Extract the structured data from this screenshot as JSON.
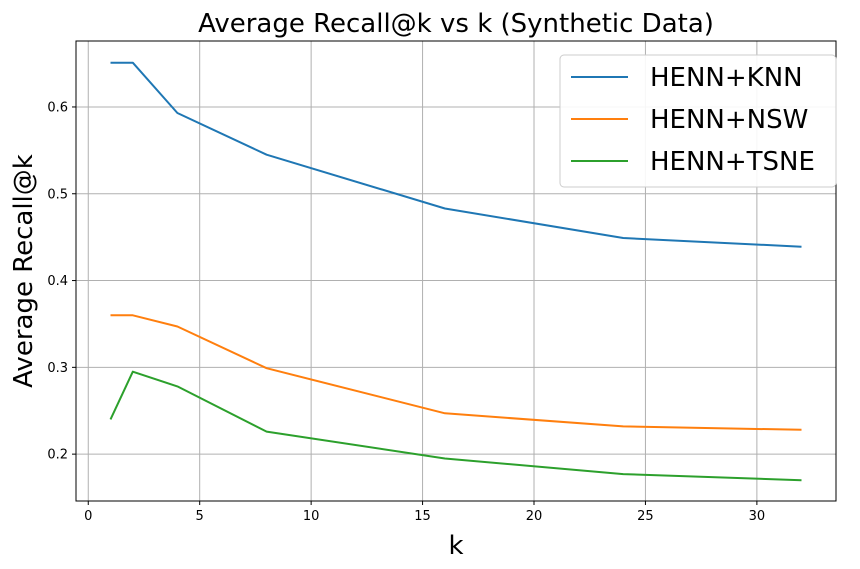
{
  "chart_data": {
    "type": "line",
    "title": "Average Recall@k vs k (Synthetic Data)",
    "xlabel": "k",
    "ylabel": "Average Recall@k",
    "xlim": [
      -0.55,
      33.55
    ],
    "ylim": [
      0.146,
      0.676
    ],
    "xticks": [
      0,
      5,
      10,
      15,
      20,
      25,
      30
    ],
    "yticks": [
      0.2,
      0.3,
      0.4,
      0.5,
      0.6
    ],
    "xtick_labels": [
      "0",
      "5",
      "10",
      "15",
      "20",
      "25",
      "30"
    ],
    "ytick_labels": [
      "0.2",
      "0.3",
      "0.4",
      "0.5",
      "0.6"
    ],
    "grid": true,
    "legend_position": "top-right",
    "x": [
      1,
      2,
      4,
      8,
      16,
      24,
      32
    ],
    "series": [
      {
        "name": "HENN+KNN",
        "color": "#1f77b4",
        "values": [
          0.651,
          0.651,
          0.593,
          0.545,
          0.483,
          0.449,
          0.439
        ]
      },
      {
        "name": "HENN+NSW",
        "color": "#ff7f0e",
        "values": [
          0.36,
          0.36,
          0.347,
          0.299,
          0.247,
          0.232,
          0.228
        ]
      },
      {
        "name": "HENN+TSNE",
        "color": "#2ca02c",
        "values": [
          0.24,
          0.295,
          0.278,
          0.226,
          0.195,
          0.177,
          0.17
        ]
      }
    ]
  }
}
